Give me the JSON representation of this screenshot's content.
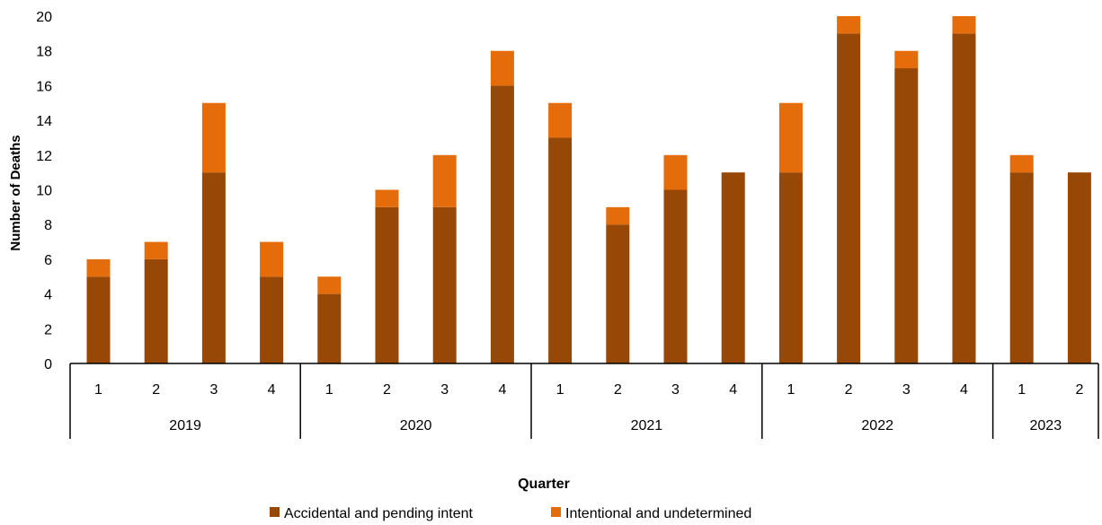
{
  "chart_data": {
    "type": "bar",
    "stacked": true,
    "title": "",
    "xlabel": "Quarter",
    "ylabel": "Number of Deaths",
    "ylim": [
      0,
      20
    ],
    "yticks": [
      0,
      2,
      4,
      6,
      8,
      10,
      12,
      14,
      16,
      18,
      20
    ],
    "grid": false,
    "legend": "bottom-center",
    "groups": [
      {
        "label": "2019",
        "quarters": [
          "1",
          "2",
          "3",
          "4"
        ]
      },
      {
        "label": "2020",
        "quarters": [
          "1",
          "2",
          "3",
          "4"
        ]
      },
      {
        "label": "2021",
        "quarters": [
          "1",
          "2",
          "3",
          "4"
        ]
      },
      {
        "label": "2022",
        "quarters": [
          "1",
          "2",
          "3",
          "4"
        ]
      },
      {
        "label": "2023",
        "quarters": [
          "1",
          "2"
        ]
      }
    ],
    "series": [
      {
        "name": "Accidental and pending intent",
        "color": "#974706",
        "values": [
          5,
          6,
          11,
          5,
          4,
          9,
          9,
          16,
          13,
          8,
          10,
          11,
          11,
          19,
          17,
          19,
          11,
          11
        ]
      },
      {
        "name": "Intentional and undetermined",
        "color": "#E46C0A",
        "values": [
          1,
          1,
          4,
          2,
          1,
          1,
          3,
          2,
          2,
          1,
          2,
          0,
          4,
          1,
          1,
          1,
          1,
          0
        ]
      }
    ]
  }
}
